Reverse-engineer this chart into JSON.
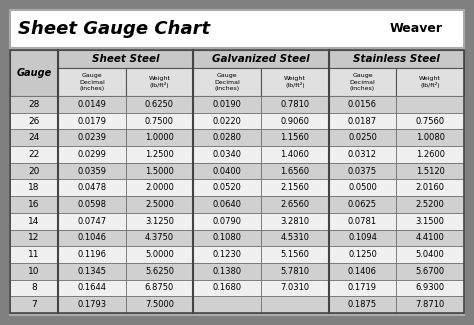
{
  "title": "Sheet Gauge Chart",
  "bg_outer": "#808080",
  "bg_white": "#ffffff",
  "bg_title": "#ffffff",
  "header_section_bg": "#c8c8c8",
  "header_sub_bg": "#e0e0e0",
  "row_dark": "#d0d0d0",
  "row_light": "#f0f0f0",
  "gauges": [
    28,
    26,
    24,
    22,
    20,
    18,
    16,
    14,
    12,
    11,
    10,
    8,
    7
  ],
  "sheet_steel": [
    [
      "0.0149",
      "0.6250"
    ],
    [
      "0.0179",
      "0.7500"
    ],
    [
      "0.0239",
      "1.0000"
    ],
    [
      "0.0299",
      "1.2500"
    ],
    [
      "0.0359",
      "1.5000"
    ],
    [
      "0.0478",
      "2.0000"
    ],
    [
      "0.0598",
      "2.5000"
    ],
    [
      "0.0747",
      "3.1250"
    ],
    [
      "0.1046",
      "4.3750"
    ],
    [
      "0.1196",
      "5.0000"
    ],
    [
      "0.1345",
      "5.6250"
    ],
    [
      "0.1644",
      "6.8750"
    ],
    [
      "0.1793",
      "7.5000"
    ]
  ],
  "galvanized_steel": [
    [
      "0.0190",
      "0.7810"
    ],
    [
      "0.0220",
      "0.9060"
    ],
    [
      "0.0280",
      "1.1560"
    ],
    [
      "0.0340",
      "1.4060"
    ],
    [
      "0.0400",
      "1.6560"
    ],
    [
      "0.0520",
      "2.1560"
    ],
    [
      "0.0640",
      "2.6560"
    ],
    [
      "0.0790",
      "3.2810"
    ],
    [
      "0.1080",
      "4.5310"
    ],
    [
      "0.1230",
      "5.1560"
    ],
    [
      "0.1380",
      "5.7810"
    ],
    [
      "0.1680",
      "7.0310"
    ],
    [
      "",
      ""
    ]
  ],
  "stainless_steel": [
    [
      "0.0156",
      ""
    ],
    [
      "0.0187",
      "0.7560"
    ],
    [
      "0.0250",
      "1.0080"
    ],
    [
      "0.0312",
      "1.2600"
    ],
    [
      "0.0375",
      "1.5120"
    ],
    [
      "0.0500",
      "2.0160"
    ],
    [
      "0.0625",
      "2.5200"
    ],
    [
      "0.0781",
      "3.1500"
    ],
    [
      "0.1094",
      "4.4100"
    ],
    [
      "0.1250",
      "5.0400"
    ],
    [
      "0.1406",
      "5.6700"
    ],
    [
      "0.1719",
      "6.9300"
    ],
    [
      "0.1875",
      "7.8710"
    ]
  ]
}
